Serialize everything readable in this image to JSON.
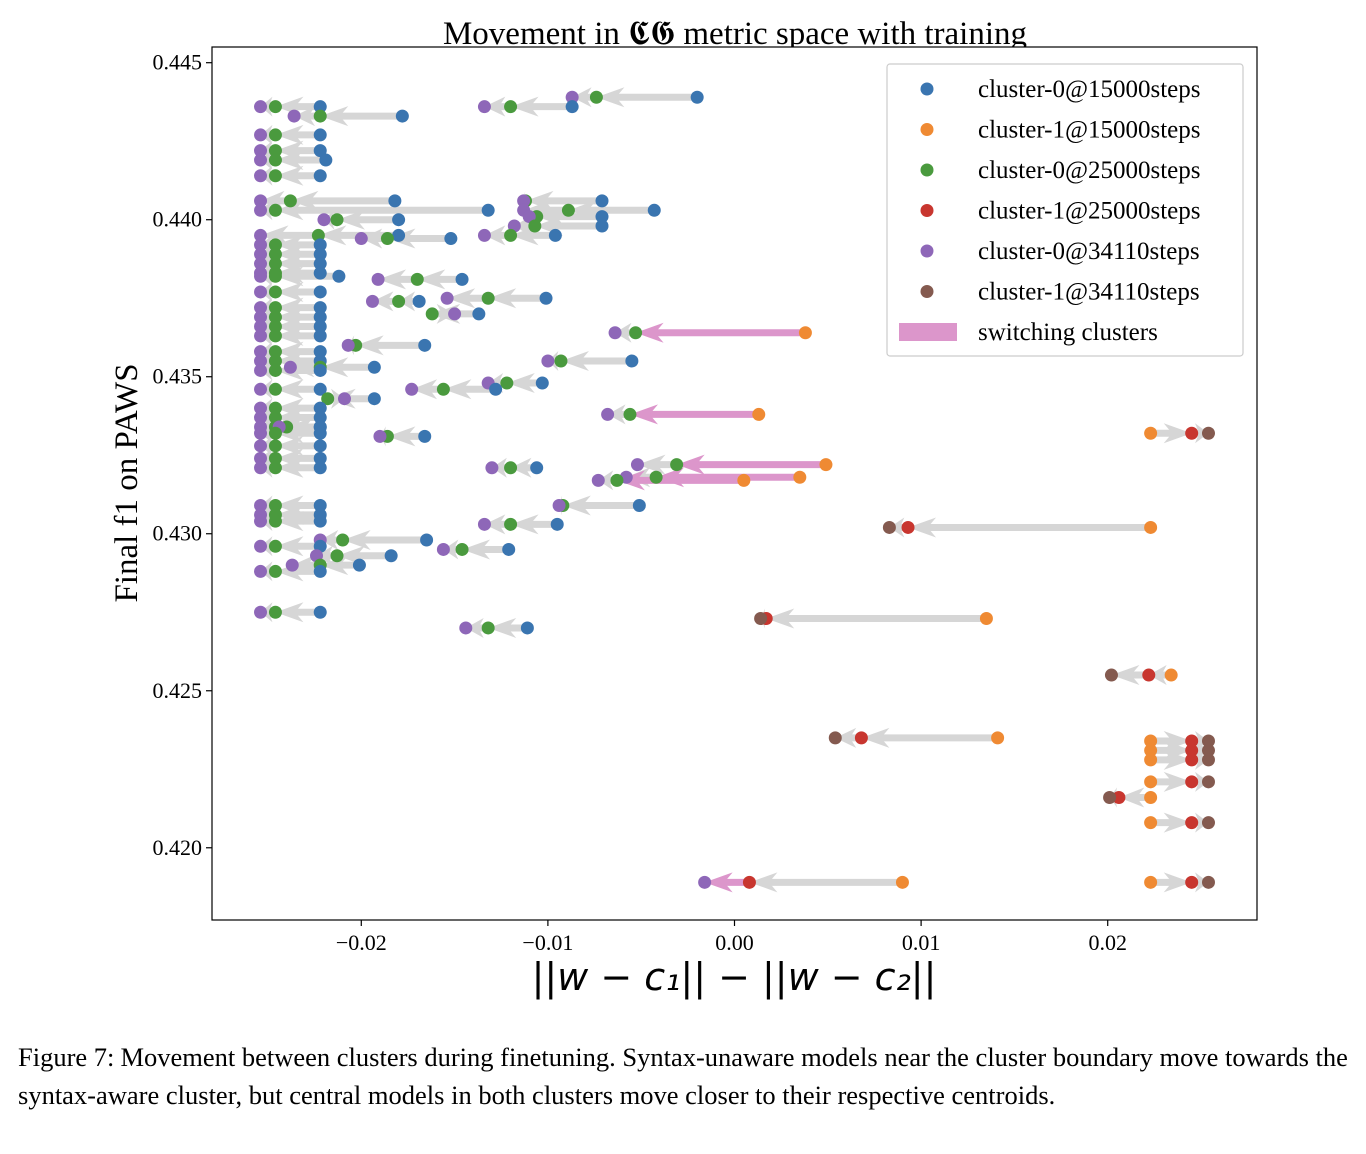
{
  "chart_data": {
    "type": "scatter",
    "title": "Movement in 𝕮𝕲 metric space with training",
    "xlabel": "||w − c₁|| − ||w − c₂||",
    "ylabel": "Final f1 on PAWS",
    "xlim": [
      -0.028,
      0.028
    ],
    "ylim": [
      0.4177,
      0.4455
    ],
    "xticks": [
      -0.02,
      -0.01,
      0.0,
      0.01,
      0.02
    ],
    "xtick_labels": [
      "−0.02",
      "−0.01",
      "0.00",
      "0.01",
      "0.02"
    ],
    "yticks": [
      0.42,
      0.425,
      0.43,
      0.435,
      0.44,
      0.445
    ],
    "ytick_labels": [
      "0.420",
      "0.425",
      "0.430",
      "0.435",
      "0.440",
      "0.445"
    ],
    "legend_position": "top-right",
    "legend": [
      {
        "label": "cluster-0@15000steps",
        "color": "#3a75b0",
        "kind": "dot"
      },
      {
        "label": "cluster-1@15000steps",
        "color": "#ef8a33",
        "kind": "dot"
      },
      {
        "label": "cluster-0@25000steps",
        "color": "#4a9a3e",
        "kind": "dot"
      },
      {
        "label": "cluster-1@25000steps",
        "color": "#c8362f",
        "kind": "dot"
      },
      {
        "label": "cluster-0@34110steps",
        "color": "#8e67b8",
        "kind": "dot"
      },
      {
        "label": "cluster-1@34110steps",
        "color": "#845a4f",
        "kind": "dot"
      },
      {
        "label": "switching clusters",
        "color": "#dc96cb",
        "kind": "bar"
      }
    ],
    "colors": {
      "c0_15000": "#3a75b0",
      "c1_15000": "#ef8a33",
      "c0_25000": "#4a9a3e",
      "c1_25000": "#c8362f",
      "c0_34110": "#8e67b8",
      "c1_34110": "#845a4f",
      "move_arrow": "#d6d6d6",
      "switch_arrow": "#dc96cb"
    },
    "trajectories": [
      {
        "y": 0.4436,
        "x": [
          -0.0222,
          -0.0246,
          -0.0254
        ]
      },
      {
        "y": 0.4433,
        "x": [
          -0.0178,
          -0.0222,
          -0.0236
        ]
      },
      {
        "y": 0.4427,
        "x": [
          -0.0222,
          -0.0246,
          -0.0254
        ]
      },
      {
        "y": 0.4422,
        "x": [
          -0.0222,
          -0.0246,
          -0.0254
        ]
      },
      {
        "y": 0.4419,
        "x": [
          -0.0219,
          -0.0246,
          -0.0254
        ]
      },
      {
        "y": 0.4414,
        "x": [
          -0.0222,
          -0.0246,
          -0.0254
        ]
      },
      {
        "y": 0.4439,
        "x": [
          -0.002,
          -0.0074,
          -0.0087
        ]
      },
      {
        "y": 0.4436,
        "x": [
          -0.0087,
          -0.012,
          -0.0134
        ]
      },
      {
        "y": 0.4406,
        "x": [
          -0.0182,
          -0.0238,
          -0.0254
        ]
      },
      {
        "y": 0.4403,
        "x": [
          -0.0132,
          -0.0246,
          -0.0254
        ]
      },
      {
        "y": 0.4406,
        "x": [
          -0.0071,
          -0.0112,
          -0.0113
        ]
      },
      {
        "y": 0.4403,
        "x": [
          -0.0043,
          -0.0089,
          -0.0113
        ]
      },
      {
        "y": 0.4401,
        "x": [
          -0.0071,
          -0.0106,
          -0.011
        ]
      },
      {
        "y": 0.44,
        "x": [
          -0.018,
          -0.0213,
          -0.022
        ]
      },
      {
        "y": 0.4398,
        "x": [
          -0.0071,
          -0.0107,
          -0.0118
        ]
      },
      {
        "y": 0.4395,
        "x": [
          -0.0096,
          -0.012,
          -0.0134
        ]
      },
      {
        "y": 0.4395,
        "x": [
          -0.018,
          -0.0223,
          -0.0254
        ]
      },
      {
        "y": 0.4394,
        "x": [
          -0.0152,
          -0.0186,
          -0.02
        ]
      },
      {
        "y": 0.4392,
        "x": [
          -0.0222,
          -0.0246,
          -0.0254
        ]
      },
      {
        "y": 0.4389,
        "x": [
          -0.0222,
          -0.0246,
          -0.0254
        ]
      },
      {
        "y": 0.4386,
        "x": [
          -0.0222,
          -0.0246,
          -0.0254
        ]
      },
      {
        "y": 0.4383,
        "x": [
          -0.0222,
          -0.0246,
          -0.0254
        ]
      },
      {
        "y": 0.4382,
        "x": [
          -0.0212,
          -0.0246,
          -0.0254
        ]
      },
      {
        "y": 0.4381,
        "x": [
          -0.0146,
          -0.017,
          -0.0191
        ]
      },
      {
        "y": 0.4377,
        "x": [
          -0.0222,
          -0.0246,
          -0.0254
        ]
      },
      {
        "y": 0.4375,
        "x": [
          -0.0101,
          -0.0132,
          -0.0154
        ]
      },
      {
        "y": 0.4374,
        "x": [
          -0.0169,
          -0.018,
          -0.0194
        ]
      },
      {
        "y": 0.4372,
        "x": [
          -0.0222,
          -0.0246,
          -0.0254
        ]
      },
      {
        "y": 0.437,
        "x": [
          -0.0137,
          -0.0162,
          -0.015
        ]
      },
      {
        "y": 0.4369,
        "x": [
          -0.0222,
          -0.0246,
          -0.0254
        ]
      },
      {
        "y": 0.4366,
        "x": [
          -0.0222,
          -0.0246,
          -0.0254
        ]
      },
      {
        "y": 0.4364,
        "x": [
          0.0038,
          -0.0053,
          -0.0064
        ]
      },
      {
        "y": 0.4363,
        "x": [
          -0.0222,
          -0.0246,
          -0.0254
        ]
      },
      {
        "y": 0.436,
        "x": [
          -0.0166,
          -0.0203,
          -0.0207
        ]
      },
      {
        "y": 0.4358,
        "x": [
          -0.0222,
          -0.0246,
          -0.0254
        ]
      },
      {
        "y": 0.4355,
        "x": [
          -0.0055,
          -0.0093,
          -0.01
        ]
      },
      {
        "y": 0.4355,
        "x": [
          -0.0222,
          -0.0246,
          -0.0254
        ]
      },
      {
        "y": 0.4353,
        "x": [
          -0.0193,
          -0.0222,
          -0.0238
        ]
      },
      {
        "y": 0.4352,
        "x": [
          -0.0222,
          -0.0246,
          -0.0254
        ]
      },
      {
        "y": 0.4348,
        "x": [
          -0.0103,
          -0.0122,
          -0.0132
        ]
      },
      {
        "y": 0.4346,
        "x": [
          -0.0222,
          -0.0246,
          -0.0254
        ]
      },
      {
        "y": 0.4346,
        "x": [
          -0.0128,
          -0.0156,
          -0.0173
        ]
      },
      {
        "y": 0.4343,
        "x": [
          -0.0193,
          -0.0218,
          -0.0209
        ]
      },
      {
        "y": 0.434,
        "x": [
          -0.0222,
          -0.0246,
          -0.0254
        ]
      },
      {
        "y": 0.4338,
        "x": [
          0.0013,
          -0.0056,
          -0.0068
        ]
      },
      {
        "y": 0.4337,
        "x": [
          -0.0222,
          -0.0246,
          -0.0254
        ]
      },
      {
        "y": 0.4334,
        "x": [
          -0.0222,
          -0.0246,
          -0.0254
        ]
      },
      {
        "y": 0.4334,
        "x": [
          -0.0222,
          -0.024,
          -0.0244
        ]
      },
      {
        "y": 0.4332,
        "x": [
          0.0223,
          0.0245,
          0.0254
        ]
      },
      {
        "y": 0.4331,
        "x": [
          -0.0166,
          -0.0186,
          -0.019
        ]
      },
      {
        "y": 0.4332,
        "x": [
          -0.0222,
          -0.0246,
          -0.0254
        ]
      },
      {
        "y": 0.4328,
        "x": [
          -0.0222,
          -0.0246,
          -0.0254
        ]
      },
      {
        "y": 0.4324,
        "x": [
          -0.0222,
          -0.0246,
          -0.0254
        ]
      },
      {
        "y": 0.4322,
        "x": [
          0.0049,
          -0.0031,
          -0.0052
        ]
      },
      {
        "y": 0.4321,
        "x": [
          -0.0106,
          -0.012,
          -0.013
        ]
      },
      {
        "y": 0.4321,
        "x": [
          -0.0222,
          -0.0246,
          -0.0254
        ]
      },
      {
        "y": 0.4318,
        "x": [
          0.0035,
          -0.0042,
          -0.0058
        ]
      },
      {
        "y": 0.4317,
        "x": [
          0.0005,
          -0.0063,
          -0.0073
        ]
      },
      {
        "y": 0.4309,
        "x": [
          -0.0051,
          -0.0092,
          -0.0094
        ]
      },
      {
        "y": 0.4309,
        "x": [
          -0.0222,
          -0.0246,
          -0.0254
        ]
      },
      {
        "y": 0.4306,
        "x": [
          -0.0222,
          -0.0246,
          -0.0254
        ]
      },
      {
        "y": 0.4304,
        "x": [
          -0.0222,
          -0.0246,
          -0.0254
        ]
      },
      {
        "y": 0.4303,
        "x": [
          -0.0095,
          -0.012,
          -0.0134
        ]
      },
      {
        "y": 0.4302,
        "x": [
          0.0223,
          0.0093,
          0.0083
        ]
      },
      {
        "y": 0.4298,
        "x": [
          -0.0165,
          -0.021,
          -0.0222
        ]
      },
      {
        "y": 0.4296,
        "x": [
          -0.0222,
          -0.0246,
          -0.0254
        ]
      },
      {
        "y": 0.4295,
        "x": [
          -0.0121,
          -0.0146,
          -0.0156
        ]
      },
      {
        "y": 0.4293,
        "x": [
          -0.0184,
          -0.0213,
          -0.0224
        ]
      },
      {
        "y": 0.429,
        "x": [
          -0.0201,
          -0.0222,
          -0.0237
        ]
      },
      {
        "y": 0.4288,
        "x": [
          -0.0222,
          -0.0246,
          -0.0254
        ]
      },
      {
        "y": 0.4275,
        "x": [
          -0.0222,
          -0.0246,
          -0.0254
        ]
      },
      {
        "y": 0.4273,
        "x": [
          0.0135,
          0.0017,
          0.0014
        ]
      },
      {
        "y": 0.427,
        "x": [
          -0.0111,
          -0.0132,
          -0.0144
        ]
      },
      {
        "y": 0.4255,
        "x": [
          0.0234,
          0.0222,
          0.0202
        ]
      },
      {
        "y": 0.4235,
        "x": [
          0.0141,
          0.0068,
          0.0054
        ]
      },
      {
        "y": 0.4234,
        "x": [
          0.0223,
          0.0245,
          0.0254
        ]
      },
      {
        "y": 0.4231,
        "x": [
          0.0223,
          0.0245,
          0.0254
        ]
      },
      {
        "y": 0.4228,
        "x": [
          0.0223,
          0.0245,
          0.0254
        ]
      },
      {
        "y": 0.4221,
        "x": [
          0.0223,
          0.0245,
          0.0254
        ]
      },
      {
        "y": 0.4216,
        "x": [
          0.0223,
          0.0206,
          0.0201
        ]
      },
      {
        "y": 0.4208,
        "x": [
          0.0223,
          0.0245,
          0.0254
        ]
      },
      {
        "y": 0.4189,
        "x": [
          0.009,
          0.0008,
          -0.0016
        ]
      },
      {
        "y": 0.4189,
        "x": [
          0.0223,
          0.0245,
          0.0254
        ]
      }
    ]
  },
  "caption": {
    "label": "Figure 7:",
    "text": "Movement between clusters during finetuning. Syntax-unaware models near the cluster boundary move towards the syntax-aware cluster, but central models in both clusters move closer to their respective centroids."
  }
}
